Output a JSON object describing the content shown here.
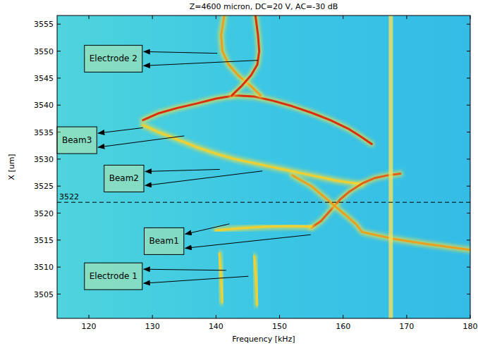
{
  "chart_data": {
    "type": "line",
    "title": "Z=4600 micron, DC=20 V, AC=-30 dB",
    "x_label": "Frequency [kHz]",
    "y_label": "X [um]",
    "xlim": [
      115,
      180
    ],
    "ylim": [
      3500.5,
      3556.6
    ],
    "xticks": [
      120,
      130,
      140,
      150,
      160,
      170,
      180
    ],
    "yticks": [
      3505,
      3510,
      3515,
      3520,
      3525,
      3530,
      3535,
      3540,
      3545,
      3550,
      3555
    ],
    "series": [
      {
        "color": "#d8300f",
        "x": [
          128.5,
          131,
          134,
          137,
          140,
          143,
          146,
          149,
          152,
          155,
          158,
          161,
          163,
          164.5
        ],
        "values": [
          3537.2,
          3538.5,
          3539.5,
          3540.3,
          3541.2,
          3541.8,
          3541.6,
          3540.8,
          3539.8,
          3538.6,
          3537.2,
          3535.5,
          3534.0,
          3532.8
        ]
      },
      {
        "color": "#f0d030",
        "x": [
          128.5,
          131,
          134,
          137,
          140,
          143,
          147,
          151,
          155,
          159,
          163
        ],
        "values": [
          3536.3,
          3535,
          3533.6,
          3532.2,
          3531,
          3530,
          3529,
          3528,
          3527,
          3526,
          3525.3
        ]
      },
      {
        "color": "#e8a020",
        "x": [
          141.3,
          140.8,
          141,
          142,
          143.5,
          145.5,
          147
        ],
        "values": [
          3556.6,
          3553,
          3550,
          3547.5,
          3545.5,
          3543.5,
          3541.8
        ]
      },
      {
        "color": "#d8300f",
        "x": [
          146.2,
          146.6,
          146.8,
          146.5,
          145.5,
          144,
          142.5
        ],
        "values": [
          3556.6,
          3553,
          3550,
          3547.5,
          3545.5,
          3543.5,
          3541.8
        ]
      },
      {
        "color": "#e06018",
        "x": [
          155,
          156.5,
          158,
          159.5,
          161,
          163,
          165,
          167,
          169
        ],
        "values": [
          3517.3,
          3518.5,
          3520.5,
          3522.5,
          3524,
          3525.5,
          3526.5,
          3527,
          3527.3
        ]
      },
      {
        "color": "#e8a020",
        "x": [
          152,
          155,
          157.5,
          159.5,
          161,
          162,
          163,
          168,
          173,
          180
        ],
        "values": [
          3527,
          3525,
          3522.5,
          3520.5,
          3519,
          3518,
          3516.5,
          3515.2,
          3514.3,
          3513.2
        ]
      },
      {
        "color": "#f0d030",
        "x": [
          140,
          144,
          148,
          152,
          155
        ],
        "values": [
          3516.8,
          3517.2,
          3517.5,
          3517.6,
          3517.5
        ]
      },
      {
        "color": "#f0d030",
        "x": [
          141,
          140.8,
          140.5
        ],
        "values": [
          3503.5,
          3508,
          3512.5
        ]
      },
      {
        "color": "#f0d030",
        "x": [
          146.5,
          146.3,
          146
        ],
        "values": [
          3503,
          3508,
          3512
        ]
      },
      {
        "color": "#f2e060",
        "line_style": "band",
        "x": [
          167.5,
          167.5
        ],
        "values": [
          3500.5,
          3556.6
        ]
      }
    ],
    "reference_lines": [
      {
        "y": 3522,
        "label": "3522"
      }
    ],
    "annotations": [
      {
        "text": "Electrode 2",
        "x": 119.3,
        "y": 3548.6,
        "targets": [
          [
            140.2,
            3549.6
          ],
          [
            146.6,
            3548.3
          ]
        ]
      },
      {
        "text": "Beam3",
        "x": 115,
        "y": 3533.5,
        "targets": [
          [
            128.5,
            3535.8
          ],
          [
            135,
            3534.3
          ]
        ]
      },
      {
        "text": "Beam2",
        "x": 122.4,
        "y": 3526.4,
        "targets": [
          [
            140.6,
            3528.1
          ],
          [
            147.3,
            3527.8
          ]
        ]
      },
      {
        "text": "Beam1",
        "x": 128.7,
        "y": 3514.8,
        "targets": [
          [
            142.1,
            3518
          ],
          [
            154.9,
            3516
          ]
        ]
      },
      {
        "text": "Electrode 1",
        "x": 119.3,
        "y": 3508.3,
        "targets": [
          [
            141.6,
            3509.4
          ],
          [
            145.1,
            3508.3
          ]
        ]
      }
    ]
  }
}
